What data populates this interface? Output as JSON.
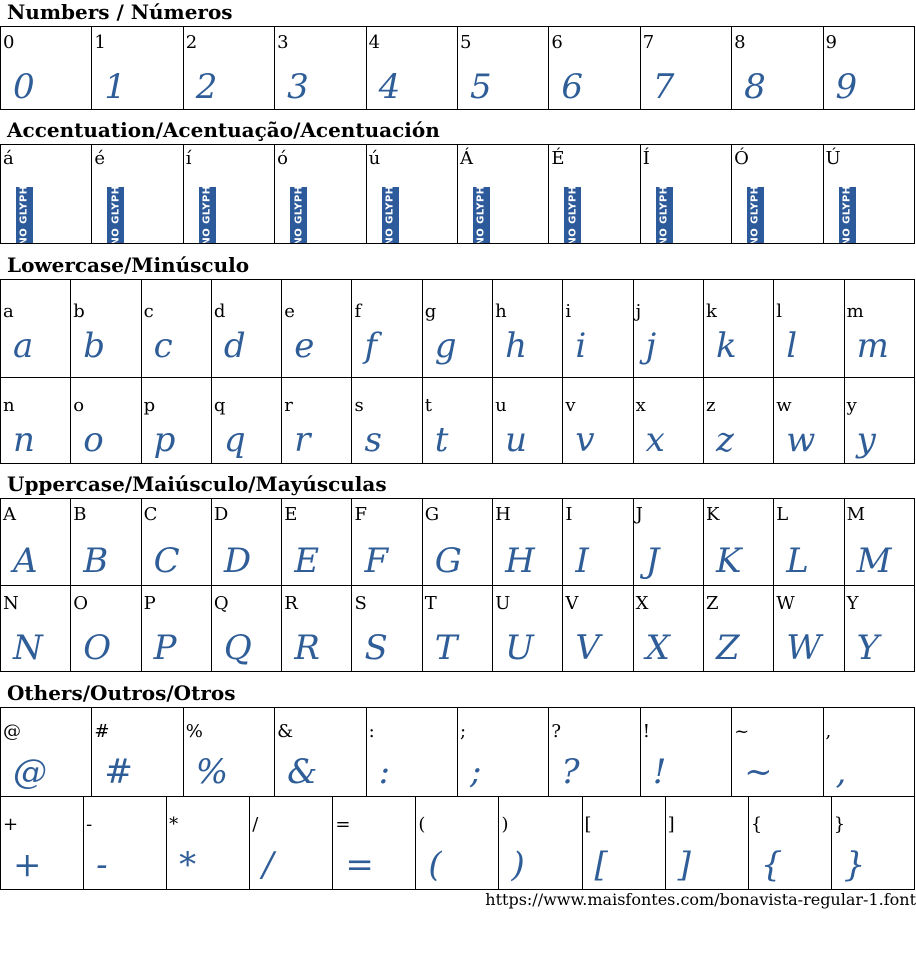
{
  "sections": {
    "numbers": "Numbers / Números",
    "accents": "Accentuation/Acentuação/Acentuación",
    "lowercase": "Lowercase/Minúsculo",
    "uppercase": "Uppercase/Maiúsculo/Mayúsculas",
    "others": "Others/Outros/Otros"
  },
  "numbers": [
    "0",
    "1",
    "2",
    "3",
    "4",
    "5",
    "6",
    "7",
    "8",
    "9"
  ],
  "accents": [
    "á",
    "é",
    "í",
    "ó",
    "ú",
    "Á",
    "É",
    "Í",
    "Ó",
    "Ú"
  ],
  "no_glyph_text": "NO GLYPH",
  "lowercase_row1": [
    "a",
    "b",
    "c",
    "d",
    "e",
    "f",
    "g",
    "h",
    "i",
    "j",
    "k",
    "l",
    "m"
  ],
  "lowercase_row2": [
    "n",
    "o",
    "p",
    "q",
    "r",
    "s",
    "t",
    "u",
    "v",
    "x",
    "z",
    "w",
    "y"
  ],
  "uppercase_row1": [
    "A",
    "B",
    "C",
    "D",
    "E",
    "F",
    "G",
    "H",
    "I",
    "J",
    "K",
    "L",
    "M"
  ],
  "uppercase_row2": [
    "N",
    "O",
    "P",
    "Q",
    "R",
    "S",
    "T",
    "U",
    "V",
    "X",
    "Z",
    "W",
    "Y"
  ],
  "others_row1": [
    "@",
    "#",
    "%",
    "&",
    ":",
    ";",
    "?",
    "!",
    "~",
    ","
  ],
  "others_row2": [
    "+",
    "-",
    "*",
    "/",
    "=",
    "(",
    ")",
    "[",
    "]",
    "{",
    "}"
  ],
  "footer_url": "https://www.maisfontes.com/bonavista-regular-1.font",
  "colors": {
    "glyph": "#2f5d97",
    "no_glyph_bg": "#2d5a9a",
    "border": "#000000"
  }
}
